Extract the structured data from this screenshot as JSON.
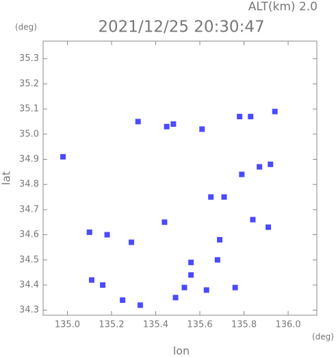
{
  "chart_data": {
    "type": "scatter",
    "title": "2021/12/25 20:30:47",
    "subtitle": "ALT(km) 2.0",
    "x_label": "lon",
    "y_label": "lat",
    "x_unit": "(deg)",
    "y_unit": "(deg)",
    "color": "#4a4aff",
    "x": [
      134.98,
      135.45,
      135.48,
      135.32,
      135.61,
      135.94,
      135.83,
      135.78,
      135.87,
      135.92,
      135.79,
      135.65,
      135.71,
      135.91,
      135.84,
      135.1,
      135.18,
      135.29,
      135.44,
      135.69,
      135.68,
      135.56,
      135.56,
      135.53,
      135.63,
      135.76,
      135.16,
      135.11,
      135.25,
      135.33,
      135.49
    ],
    "y": [
      34.91,
      35.03,
      35.04,
      35.05,
      35.02,
      35.09,
      35.07,
      35.07,
      34.87,
      34.88,
      34.84,
      34.75,
      34.75,
      34.63,
      34.66,
      34.61,
      34.6,
      34.57,
      34.65,
      34.58,
      34.5,
      34.49,
      34.44,
      34.39,
      34.38,
      34.39,
      34.4,
      34.42,
      34.34,
      34.32,
      34.35
    ],
    "xlim": [
      134.89,
      136.13
    ],
    "ylim": [
      34.28,
      35.37
    ],
    "xticks": [
      {
        "value": 135,
        "label": "135.0"
      },
      135.2,
      135.4,
      135.6,
      135.8,
      {
        "value": 136,
        "label": "136.0"
      }
    ],
    "yticks": [
      34.3,
      34.4,
      34.5,
      34.6,
      34.7,
      34.8,
      34.9,
      {
        "value": 35,
        "label": "35.0"
      },
      35.1,
      35.2,
      35.3
    ]
  }
}
